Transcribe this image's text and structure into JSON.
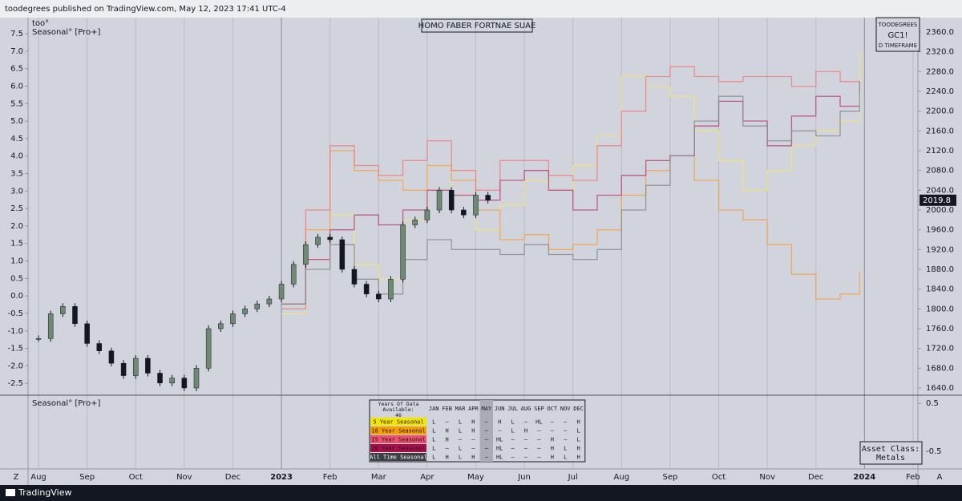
{
  "header": "toodegrees published on TradingView.com, May 12, 2023 17:41 UTC-4",
  "chart_data": {
    "type": "line",
    "title": "HOMO FABER FORTNAE SUAE",
    "indicator_label": "too°",
    "indicator_name": "Seasonal° [Pro+]",
    "xlim": [
      -0.215,
      18.1
    ],
    "xticks": [
      {
        "value": 0,
        "label": "Aug"
      },
      {
        "value": 1,
        "label": "Sep"
      },
      {
        "value": 2,
        "label": "Oct"
      },
      {
        "value": 3,
        "label": "Nov"
      },
      {
        "value": 4,
        "label": "Dec"
      },
      {
        "value": 5,
        "label": "2023"
      },
      {
        "value": 6,
        "label": "Feb"
      },
      {
        "value": 7,
        "label": "Mar"
      },
      {
        "value": 8,
        "label": "Apr"
      },
      {
        "value": 9,
        "label": "May"
      },
      {
        "value": 10,
        "label": "Jun"
      },
      {
        "value": 11,
        "label": "Jul"
      },
      {
        "value": 12,
        "label": "Aug"
      },
      {
        "value": 13,
        "label": "Sep"
      },
      {
        "value": 14,
        "label": "Oct"
      },
      {
        "value": 15,
        "label": "Nov"
      },
      {
        "value": 16,
        "label": "Dec"
      },
      {
        "value": 17,
        "label": "2024"
      },
      {
        "value": 18,
        "label": "Feb"
      }
    ],
    "ylim": [
      -2.84,
      7.96
    ],
    "yticks": [
      7.5,
      {
        "value": 7,
        "label": "7.0"
      },
      6.5,
      {
        "value": 6,
        "label": "6.0"
      },
      5.5,
      {
        "value": 5,
        "label": "5.0"
      },
      4.5,
      {
        "value": 4,
        "label": "4.0"
      },
      3.5,
      {
        "value": 3,
        "label": "3.0"
      },
      2.5,
      {
        "value": 2,
        "label": "2.0"
      },
      1.5,
      {
        "value": 1,
        "label": "1.0"
      },
      0.5,
      {
        "value": 0,
        "label": "0.0"
      },
      -0.5,
      {
        "value": -1,
        "label": "-1.0"
      },
      -1.5,
      {
        "value": -2,
        "label": "-2.0"
      },
      -2.5
    ],
    "y2lim": [
      1625.4,
      2389.2
    ],
    "y2ticks": [
      {
        "value": 2360,
        "label": "2360.0"
      },
      {
        "value": 2320,
        "label": "2320.0"
      },
      {
        "value": 2280,
        "label": "2280.0"
      },
      {
        "value": 2240,
        "label": "2240.0"
      },
      {
        "value": 2200,
        "label": "2200.0"
      },
      {
        "value": 2160,
        "label": "2160.0"
      },
      {
        "value": 2120,
        "label": "2120.0"
      },
      {
        "value": 2080,
        "label": "2080.0"
      },
      {
        "value": 2040,
        "label": "2040.0"
      },
      {
        "value": 2000,
        "label": "2000.0"
      },
      {
        "value": 1960,
        "label": "1960.0"
      },
      {
        "value": 1920,
        "label": "1920.0"
      },
      {
        "value": 1880,
        "label": "1880.0"
      },
      {
        "value": 1840,
        "label": "1840.0"
      },
      {
        "value": 1800,
        "label": "1800.0"
      },
      {
        "value": 1760,
        "label": "1760.0"
      },
      {
        "value": 1720,
        "label": "1720.0"
      },
      {
        "value": 1680,
        "label": "1680.0"
      },
      {
        "value": 1640,
        "label": "1640.0"
      }
    ],
    "last_price": 2019.8,
    "x": [
      5,
      5.5,
      6,
      6.5,
      7,
      7.5,
      8,
      8.5,
      9,
      9.5,
      10,
      10.5,
      11,
      11.5,
      12,
      12.5,
      13,
      13.5,
      14,
      14.5,
      15,
      15.5,
      16,
      16.5,
      16.9
    ],
    "series": [
      {
        "name": "5 Year Seasonal",
        "color": "#f3e27a",
        "axis": "y2",
        "values": [
          1790,
          1900,
          1990,
          1890,
          1860,
          1980,
          2090,
          2030,
          1960,
          2010,
          2060,
          2040,
          2090,
          2150,
          2270,
          2250,
          2230,
          2160,
          2100,
          2040,
          2080,
          2130,
          2160,
          2180,
          2320
        ]
      },
      {
        "name": "10 Year Seasonal",
        "color": "#f2a24e",
        "axis": "y2",
        "values": [
          1810,
          1960,
          2120,
          2080,
          2060,
          2040,
          2090,
          2060,
          2000,
          1940,
          1950,
          1920,
          1930,
          1960,
          2030,
          2080,
          2110,
          2060,
          2000,
          1980,
          1930,
          1870,
          1820,
          1830,
          1875
        ]
      },
      {
        "name": "15 Year Seasonal",
        "color": "#ef7f82",
        "axis": "y2",
        "values": [
          1800,
          2000,
          2130,
          2090,
          2070,
          2100,
          2140,
          2080,
          2040,
          2100,
          2100,
          2070,
          2060,
          2130,
          2200,
          2270,
          2290,
          2270,
          2260,
          2270,
          2270,
          2250,
          2280,
          2260,
          2240
        ]
      },
      {
        "name": "20 Year Seasonal",
        "color": "#b9477a",
        "axis": "y2",
        "values": [
          1810,
          1900,
          1960,
          1990,
          1970,
          2000,
          2040,
          2030,
          2020,
          2060,
          2080,
          2040,
          2000,
          2030,
          2070,
          2100,
          2110,
          2170,
          2220,
          2180,
          2130,
          2190,
          2230,
          2210,
          2210
        ]
      },
      {
        "name": "All Time Seasonal",
        "color": "#8a8c90",
        "axis": "y2",
        "values": [
          1810,
          1880,
          1930,
          1860,
          1830,
          1900,
          1940,
          1920,
          1920,
          1910,
          1930,
          1910,
          1900,
          1920,
          2000,
          2050,
          2110,
          2180,
          2230,
          2170,
          2140,
          2160,
          2150,
          2200,
          2260
        ]
      }
    ],
    "candles": {
      "axis": "y2",
      "x": [
        0,
        0.25,
        0.5,
        0.75,
        1,
        1.25,
        1.5,
        1.75,
        2,
        2.25,
        2.5,
        2.75,
        3,
        3.25,
        3.5,
        3.75,
        4,
        4.25,
        4.5,
        4.75,
        5,
        5.25,
        5.5,
        5.75,
        6,
        6.25,
        6.5,
        6.75,
        7,
        7.25,
        7.5,
        7.75,
        8,
        8.25,
        8.5,
        8.75,
        9,
        9.25
      ],
      "values": [
        1740,
        1790,
        1805,
        1770,
        1730,
        1715,
        1690,
        1665,
        1700,
        1670,
        1650,
        1660,
        1640,
        1680,
        1760,
        1770,
        1790,
        1800,
        1810,
        1820,
        1850,
        1890,
        1930,
        1945,
        1940,
        1880,
        1850,
        1830,
        1820,
        1860,
        1970,
        1980,
        2000,
        2040,
        2000,
        1990,
        2030,
        2019.8
      ]
    }
  },
  "info_box": [
    "TOODEGREES",
    "GC1!",
    "D TIMEFRAME"
  ],
  "lower_pane": {
    "name": "Seasonal° [Pro+]",
    "ylim": [
      -0.87,
      0.67
    ],
    "yticks": [
      0.5,
      -0.5
    ],
    "table": {
      "header": [
        "Years Of Data Available: 46",
        "JAN",
        "FEB",
        "MAR",
        "APR",
        "MAY",
        "JUN",
        "JUL",
        "AUG",
        "SEP",
        "OCT",
        "NOV",
        "DEC"
      ],
      "row_colors": [
        "#f5e600",
        "#f59f00",
        "#ef4f6b",
        "#a8104c",
        "#3d3f45"
      ],
      "rows": [
        [
          "L",
          "–",
          "L",
          "H",
          "–",
          "H",
          "L",
          "–",
          "HL",
          "–",
          "–",
          "H"
        ],
        [
          "L",
          "H",
          "L",
          "H",
          "–",
          "–",
          "L",
          "H",
          "–",
          "–",
          "–",
          "L"
        ],
        [
          "L",
          "H",
          "–",
          "–",
          "–",
          "HL",
          "–",
          "–",
          "–",
          "H",
          "–",
          "L"
        ],
        [
          "L",
          "–",
          "L",
          "–",
          "–",
          "HL",
          "–",
          "–",
          "–",
          "H",
          "L",
          "H"
        ],
        [
          "L",
          "H",
          "L",
          "H",
          "–",
          "HL",
          "–",
          "–",
          "–",
          "H",
          "L",
          "H"
        ]
      ]
    },
    "asset_class": [
      "Asset Class:",
      "Metals"
    ]
  },
  "buttons": [
    "Z",
    "A"
  ],
  "footer": "TradingView"
}
